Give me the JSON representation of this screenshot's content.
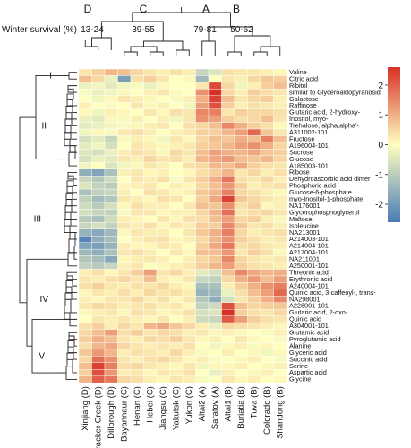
{
  "chart_data": {
    "type": "heatmap",
    "row_label": "Winter survival (%)",
    "survival_groups": [
      {
        "letter": "D",
        "range": "13-24"
      },
      {
        "letter": "C",
        "range": "39-55"
      },
      {
        "letter": "A",
        "range": "79-81"
      },
      {
        "letter": "B",
        "range": "50-62"
      }
    ],
    "columns": [
      "Xinjiang (D)",
      "Cracker Creek (D)",
      "Dillbrough (D)",
      "Bayannaur (C)",
      "Henan (C)",
      "Hebei (C)",
      "Jiangsu (C)",
      "Yakutsk (C)",
      "Yukon (C)",
      "Altai2 (A)",
      "Saratov (A)",
      "Altai1 (B)",
      "Buriatia (B)",
      "Tuva (B)",
      "Colorado (B)",
      "Shandong (B)"
    ],
    "rows": [
      "Valine",
      "Citric acid",
      "Ribitol",
      "similar to Glyceroaldopyranosid",
      "Galactose",
      "Raffinose",
      "Glutaric acid, 2-hydroxy-",
      "Inositol, myo-",
      "Trehalose, alpha,alpha'-",
      "A311002-101",
      "Fructose",
      "A196004-101",
      "Sucrose",
      "Glucose",
      "A185003-101",
      "Ribose",
      "Dehydroascorbic acid dimer",
      "Phosphoric acid",
      "Glucose-6-phosphate",
      "myo-Inositol-1-phosphate",
      "NA176001",
      "Glycerophosphoglycerol",
      "Maltose",
      "Isoleucine",
      "NA213001",
      "A214003-101",
      "A214004-101",
      "A217004-101",
      "NA211001",
      "A250001-101",
      "Threonic acid",
      "Erythronic acid",
      "A240004-101",
      "Quinic acid, 3-caffeoyl-, trans-",
      "NA298001",
      "A228001-101",
      "Glutaric acid, 2-oxo-",
      "Quinic acid",
      "A304001-101",
      "Glutamic acid",
      "Pyroglutamic acid",
      "Alanine",
      "Glyceric acid",
      "Succinic acid",
      "Serine",
      "Aspartic acid",
      "Glycine"
    ],
    "row_clusters": [
      {
        "label": "I",
        "start": 0,
        "end": 1
      },
      {
        "label": "II",
        "start": 2,
        "end": 14
      },
      {
        "label": "III",
        "start": 15,
        "end": 29
      },
      {
        "label": "IV",
        "start": 30,
        "end": 38
      },
      {
        "label": "V",
        "start": 39,
        "end": 46
      }
    ],
    "legend_ticks": [
      2,
      1,
      0,
      -1,
      -2
    ],
    "color_range": [
      -2.6,
      2.6
    ],
    "colors": {
      "low": "#4a7bb7",
      "mid": "#ffffbf",
      "high": "#d73027"
    },
    "values": [
      [
        0.3,
        0.6,
        0.9,
        0.8,
        0.5,
        0.3,
        0.2,
        0.4,
        0.2,
        -0.8,
        -0.5,
        0.4,
        0.3,
        0.3,
        0.2,
        0.1
      ],
      [
        0.8,
        0.5,
        -0.3,
        -1.9,
        0.4,
        0.6,
        0.3,
        0.0,
        0.1,
        -1.4,
        0.0,
        0.3,
        0.2,
        0.5,
        0.7,
        0.6
      ],
      [
        -0.3,
        -0.2,
        -0.4,
        -0.2,
        -0.1,
        -0.3,
        0.1,
        0.0,
        0.0,
        0.3,
        2.3,
        0.5,
        -0.2,
        0.2,
        0.6,
        0.8
      ],
      [
        -0.1,
        -0.3,
        -0.2,
        0.1,
        0.0,
        0.2,
        0.3,
        0.1,
        0.0,
        1.4,
        2.6,
        0.5,
        0.2,
        0.6,
        0.4,
        0.3
      ],
      [
        0.0,
        -0.2,
        0.1,
        0.3,
        0.2,
        0.1,
        0.0,
        -0.1,
        0.2,
        1.0,
        2.4,
        0.8,
        0.3,
        0.5,
        0.6,
        0.2
      ],
      [
        0.2,
        0.0,
        -0.1,
        0.0,
        0.3,
        0.1,
        0.2,
        0.0,
        -0.2,
        1.2,
        2.2,
        0.6,
        0.2,
        0.4,
        0.3,
        0.2
      ],
      [
        0.1,
        -0.2,
        0.2,
        0.1,
        0.0,
        0.3,
        0.1,
        0.4,
        0.3,
        1.5,
        1.6,
        0.3,
        0.6,
        0.5,
        0.5,
        0.4
      ],
      [
        -0.3,
        -0.4,
        0.1,
        -0.1,
        0.2,
        0.0,
        0.2,
        -0.2,
        0.3,
        1.4,
        1.2,
        0.6,
        0.4,
        0.5,
        0.8,
        0.3
      ],
      [
        -0.4,
        -0.3,
        -0.2,
        -0.1,
        0.1,
        0.2,
        0.3,
        0.0,
        0.4,
        0.5,
        0.8,
        1.5,
        1.0,
        0.6,
        0.4,
        0.1
      ],
      [
        -0.2,
        0.1,
        -0.1,
        0.3,
        0.4,
        0.2,
        0.0,
        0.2,
        0.3,
        0.6,
        0.6,
        0.9,
        1.2,
        1.9,
        0.7,
        0.3
      ],
      [
        -0.6,
        -0.4,
        -0.8,
        -0.1,
        0.2,
        0.1,
        -0.2,
        0.3,
        0.1,
        0.5,
        0.8,
        0.7,
        1.0,
        0.8,
        1.6,
        0.8
      ],
      [
        -0.4,
        -0.2,
        -0.6,
        0.0,
        0.3,
        0.2,
        0.1,
        0.2,
        0.3,
        0.6,
        0.7,
        0.9,
        1.2,
        1.4,
        1.0,
        0.5
      ],
      [
        -0.5,
        -0.6,
        -0.3,
        0.2,
        0.4,
        0.3,
        0.1,
        0.5,
        0.3,
        0.8,
        1.2,
        1.0,
        0.9,
        1.1,
        0.7,
        0.6
      ],
      [
        -0.6,
        -0.3,
        -0.4,
        0.3,
        0.2,
        0.5,
        0.3,
        0.4,
        0.2,
        0.9,
        1.1,
        1.3,
        0.8,
        0.7,
        0.9,
        0.5
      ],
      [
        -0.2,
        0.0,
        -0.5,
        -0.2,
        0.1,
        0.3,
        0.2,
        0.0,
        0.4,
        0.5,
        0.9,
        0.8,
        1.1,
        0.6,
        0.4,
        0.3
      ],
      [
        -1.6,
        -1.8,
        -1.2,
        0.2,
        0.3,
        0.1,
        0.2,
        0.0,
        0.1,
        0.4,
        0.6,
        0.9,
        0.3,
        0.5,
        0.2,
        0.4
      ],
      [
        -0.8,
        -1.1,
        -0.7,
        0.0,
        0.3,
        0.2,
        0.4,
        -0.1,
        0.3,
        0.6,
        1.0,
        1.7,
        0.4,
        0.3,
        0.5,
        0.2
      ],
      [
        -0.5,
        -0.9,
        -1.0,
        0.1,
        0.2,
        0.3,
        0.0,
        0.2,
        0.1,
        0.5,
        0.8,
        1.3,
        0.6,
        0.2,
        0.3,
        0.4
      ],
      [
        -1.2,
        -0.9,
        -0.8,
        0.2,
        0.0,
        0.4,
        0.3,
        0.1,
        0.2,
        0.7,
        0.9,
        1.6,
        0.5,
        0.4,
        0.2,
        0.1
      ],
      [
        -0.9,
        -1.3,
        -1.1,
        0.3,
        0.2,
        0.1,
        0.4,
        0.3,
        0.0,
        0.6,
        1.1,
        2.4,
        0.7,
        0.5,
        0.3,
        0.2
      ],
      [
        -0.7,
        -1.0,
        -0.6,
        0.1,
        0.4,
        0.2,
        0.2,
        0.0,
        0.3,
        0.8,
        0.7,
        1.4,
        0.4,
        0.6,
        0.1,
        0.2
      ],
      [
        -0.6,
        -0.8,
        -0.9,
        -0.1,
        0.3,
        0.3,
        0.1,
        0.2,
        0.2,
        0.5,
        0.9,
        1.8,
        0.3,
        0.4,
        0.5,
        0.3
      ],
      [
        -1.0,
        -1.2,
        -0.7,
        0.2,
        0.1,
        0.0,
        0.3,
        0.1,
        0.4,
        0.4,
        0.8,
        1.2,
        0.5,
        0.6,
        0.2,
        0.1
      ],
      [
        -0.8,
        -0.6,
        -0.9,
        0.3,
        0.2,
        0.4,
        0.1,
        0.3,
        0.2,
        0.6,
        0.6,
        1.5,
        0.7,
        0.3,
        0.4,
        0.2
      ],
      [
        -1.5,
        -1.7,
        -1.4,
        0.1,
        0.3,
        0.2,
        0.2,
        0.0,
        0.3,
        0.7,
        1.0,
        1.6,
        0.5,
        0.2,
        0.3,
        0.4
      ],
      [
        -2.4,
        -1.6,
        -1.3,
        0.0,
        0.2,
        0.3,
        0.4,
        0.1,
        0.2,
        0.5,
        0.9,
        1.4,
        0.6,
        0.4,
        0.2,
        0.3
      ],
      [
        -1.8,
        -1.9,
        -1.5,
        0.2,
        0.1,
        0.1,
        0.3,
        0.2,
        0.0,
        0.6,
        1.1,
        1.7,
        0.4,
        0.5,
        0.3,
        0.2
      ],
      [
        -1.4,
        -1.6,
        -1.2,
        0.3,
        0.4,
        0.2,
        0.0,
        0.3,
        0.1,
        0.8,
        0.8,
        1.3,
        0.3,
        0.6,
        0.4,
        0.1
      ],
      [
        -1.1,
        -1.3,
        -1.7,
        0.1,
        0.2,
        0.3,
        0.2,
        0.0,
        0.2,
        0.5,
        0.7,
        1.5,
        0.5,
        0.3,
        0.2,
        0.3
      ],
      [
        -0.9,
        -1.0,
        -0.8,
        0.2,
        0.3,
        0.0,
        0.1,
        0.2,
        0.3,
        0.6,
        0.9,
        1.2,
        0.6,
        0.4,
        0.3,
        0.2
      ],
      [
        0.2,
        0.4,
        0.1,
        0.3,
        0.6,
        1.2,
        0.3,
        0.5,
        0.2,
        -0.4,
        -0.6,
        0.8,
        1.5,
        1.1,
        0.9,
        1.0
      ],
      [
        0.3,
        0.2,
        0.4,
        0.5,
        0.3,
        0.8,
        0.2,
        0.1,
        0.3,
        -0.8,
        -0.9,
        0.5,
        1.0,
        1.3,
        0.8,
        1.2
      ],
      [
        0.4,
        0.6,
        0.3,
        0.2,
        0.4,
        0.3,
        0.5,
        0.2,
        0.1,
        -1.3,
        -1.2,
        0.2,
        0.6,
        1.0,
        1.4,
        1.6
      ],
      [
        0.1,
        0.3,
        0.2,
        0.4,
        0.2,
        0.5,
        0.3,
        0.4,
        0.2,
        -1.5,
        -1.4,
        -0.3,
        0.4,
        0.8,
        1.2,
        1.9
      ],
      [
        0.2,
        0.1,
        0.3,
        0.3,
        0.5,
        0.2,
        0.4,
        0.1,
        0.3,
        -1.1,
        -1.6,
        -0.6,
        0.3,
        0.6,
        1.0,
        1.5
      ],
      [
        0.3,
        0.5,
        0.4,
        0.2,
        0.3,
        0.4,
        0.2,
        0.3,
        0.1,
        -0.9,
        -0.7,
        2.2,
        0.8,
        0.5,
        0.6,
        0.7
      ],
      [
        0.1,
        0.2,
        0.3,
        0.1,
        0.4,
        0.3,
        0.1,
        0.2,
        0.4,
        -0.6,
        -0.5,
        2.6,
        0.6,
        0.4,
        0.3,
        0.5
      ],
      [
        0.0,
        0.3,
        0.2,
        0.3,
        0.2,
        0.1,
        0.3,
        0.0,
        0.2,
        -0.7,
        -0.8,
        2.1,
        1.2,
        0.6,
        0.4,
        0.3
      ],
      [
        0.4,
        0.6,
        0.2,
        0.5,
        0.3,
        0.9,
        1.1,
        0.7,
        0.5,
        0.2,
        -0.3,
        0.5,
        0.4,
        0.3,
        0.2,
        0.1
      ],
      [
        0.5,
        0.8,
        1.2,
        0.4,
        0.6,
        0.3,
        0.5,
        0.4,
        0.2,
        0.3,
        0.1,
        0.2,
        0.1,
        0.0,
        -0.1,
        0.2
      ],
      [
        0.6,
        1.0,
        0.8,
        0.3,
        0.2,
        0.5,
        0.4,
        0.6,
        0.3,
        0.1,
        0.2,
        0.0,
        0.3,
        0.1,
        0.0,
        -0.1
      ],
      [
        0.4,
        0.9,
        1.1,
        0.5,
        0.3,
        0.2,
        0.3,
        0.2,
        0.4,
        0.0,
        -0.2,
        0.1,
        0.2,
        -0.1,
        0.1,
        0.0
      ],
      [
        0.7,
        1.3,
        0.9,
        0.2,
        0.4,
        0.3,
        0.2,
        0.5,
        0.2,
        -0.1,
        0.0,
        0.2,
        0.0,
        0.1,
        -0.2,
        0.1
      ],
      [
        0.5,
        1.8,
        1.4,
        0.3,
        0.2,
        0.4,
        0.5,
        0.3,
        0.1,
        0.2,
        -0.1,
        0.0,
        0.1,
        0.2,
        0.0,
        -0.1
      ],
      [
        0.8,
        2.4,
        1.6,
        0.4,
        0.5,
        0.3,
        0.2,
        0.1,
        0.3,
        -0.2,
        0.1,
        0.1,
        0.2,
        0.0,
        0.1,
        0.2
      ],
      [
        0.6,
        2.2,
        1.3,
        0.2,
        0.3,
        0.1,
        0.3,
        0.2,
        0.4,
        0.0,
        -0.3,
        0.2,
        0.0,
        0.1,
        0.2,
        0.0
      ],
      [
        0.9,
        2.0,
        1.7,
        0.5,
        0.4,
        0.2,
        0.1,
        0.3,
        0.2,
        -0.1,
        0.0,
        0.3,
        0.1,
        0.2,
        0.0,
        0.1
      ]
    ]
  }
}
